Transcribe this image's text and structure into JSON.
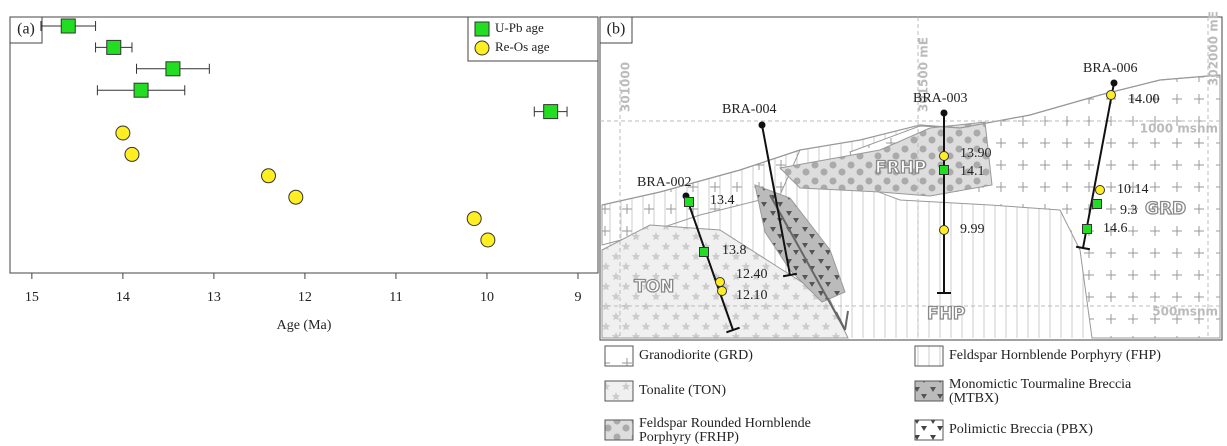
{
  "chart_data": {
    "type": "scatter",
    "panel_label": "(a)",
    "xlabel": "Age (Ma)",
    "xlim": [
      15.24,
      8.78
    ],
    "xticks": [
      15,
      14,
      13,
      12,
      11,
      10,
      9
    ],
    "series": [
      {
        "name": "U-Pb age",
        "color": "#22dd22",
        "marker": "square",
        "values": [
          14.6,
          14.1,
          13.45,
          13.8,
          9.3
        ],
        "errors": [
          0.3,
          0.2,
          0.4,
          0.48,
          0.18
        ]
      },
      {
        "name": "Re-Os age",
        "color": "#ffee22",
        "marker": "circle",
        "values": [
          14.0,
          13.9,
          12.4,
          12.1,
          10.14,
          9.99
        ]
      }
    ]
  },
  "map": {
    "panel_label": "(b)",
    "easting_labels": [
      "301000",
      "301500 mE",
      "302000 mE"
    ],
    "elevation_labels": [
      "1000 msnm",
      "500msnm"
    ],
    "units": [
      "FRHP",
      "GRD",
      "TON",
      "FHP"
    ],
    "drill_holes": [
      "BRA-002",
      "BRA-004",
      "BRA-003",
      "BRA-006"
    ],
    "u_pb_samples": [
      "13.4",
      "13.8",
      "14.1",
      "9.3",
      "14.6"
    ],
    "re_os_samples": [
      "12.40",
      "12.10",
      "13.90",
      "9.99",
      "14.00",
      "10.14"
    ],
    "legend": [
      [
        "Granodiorite (GRD)"
      ],
      [
        "Feldspar Hornblende Porphyry (FHP)"
      ],
      [
        "Tonalite (TON)"
      ],
      [
        "Monomictic Tourmaline Breccia",
        "(MTBX)"
      ],
      [
        "Feldspar Rounded Hornblende",
        "Porphyry (FRHP)"
      ],
      [
        "Polimictic Breccia (PBX)"
      ]
    ]
  }
}
